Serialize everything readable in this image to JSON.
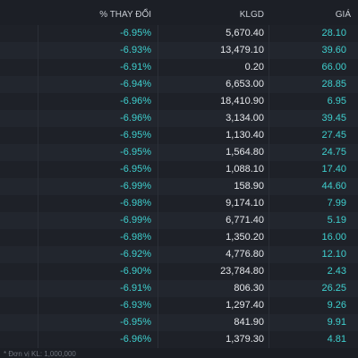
{
  "table": {
    "columns": {
      "change": "% THAY ĐỔI",
      "volume": "KLGD",
      "price": "GIÁ"
    },
    "rows": [
      {
        "change": "-6.95%",
        "volume": "5,670.40",
        "price": "28.10"
      },
      {
        "change": "-6.93%",
        "volume": "13,479.10",
        "price": "39.60"
      },
      {
        "change": "-6.91%",
        "volume": "0.20",
        "price": "66.00"
      },
      {
        "change": "-6.94%",
        "volume": "6,653.00",
        "price": "28.85"
      },
      {
        "change": "-6.96%",
        "volume": "18,410.90",
        "price": "6.95"
      },
      {
        "change": "-6.96%",
        "volume": "3,134.00",
        "price": "39.45"
      },
      {
        "change": "-6.95%",
        "volume": "1,130.40",
        "price": "27.45"
      },
      {
        "change": "-6.95%",
        "volume": "1,564.80",
        "price": "24.75"
      },
      {
        "change": "-6.95%",
        "volume": "1,088.10",
        "price": "17.40"
      },
      {
        "change": "-6.99%",
        "volume": "158.90",
        "price": "44.60"
      },
      {
        "change": "-6.98%",
        "volume": "9,174.10",
        "price": "7.99"
      },
      {
        "change": "-6.99%",
        "volume": "6,771.40",
        "price": "5.19"
      },
      {
        "change": "-6.98%",
        "volume": "1,350.20",
        "price": "16.00"
      },
      {
        "change": "-6.92%",
        "volume": "4,776.80",
        "price": "12.10"
      },
      {
        "change": "-6.90%",
        "volume": "23,784.80",
        "price": "2.43"
      },
      {
        "change": "-6.91%",
        "volume": "806.30",
        "price": "26.25"
      },
      {
        "change": "-6.93%",
        "volume": "1,297.40",
        "price": "9.26"
      },
      {
        "change": "-6.95%",
        "volume": "841.90",
        "price": "9.91"
      },
      {
        "change": "-6.96%",
        "volume": "1,379.30",
        "price": "4.81"
      }
    ]
  },
  "footer": {
    "note": "* Đơn vị KL: 1,000,000"
  },
  "colors": {
    "background": "#1b1e24",
    "accent_teal": "#3fd0cf",
    "text_white": "#e6e8ec",
    "header_text": "#c8ccd3"
  }
}
